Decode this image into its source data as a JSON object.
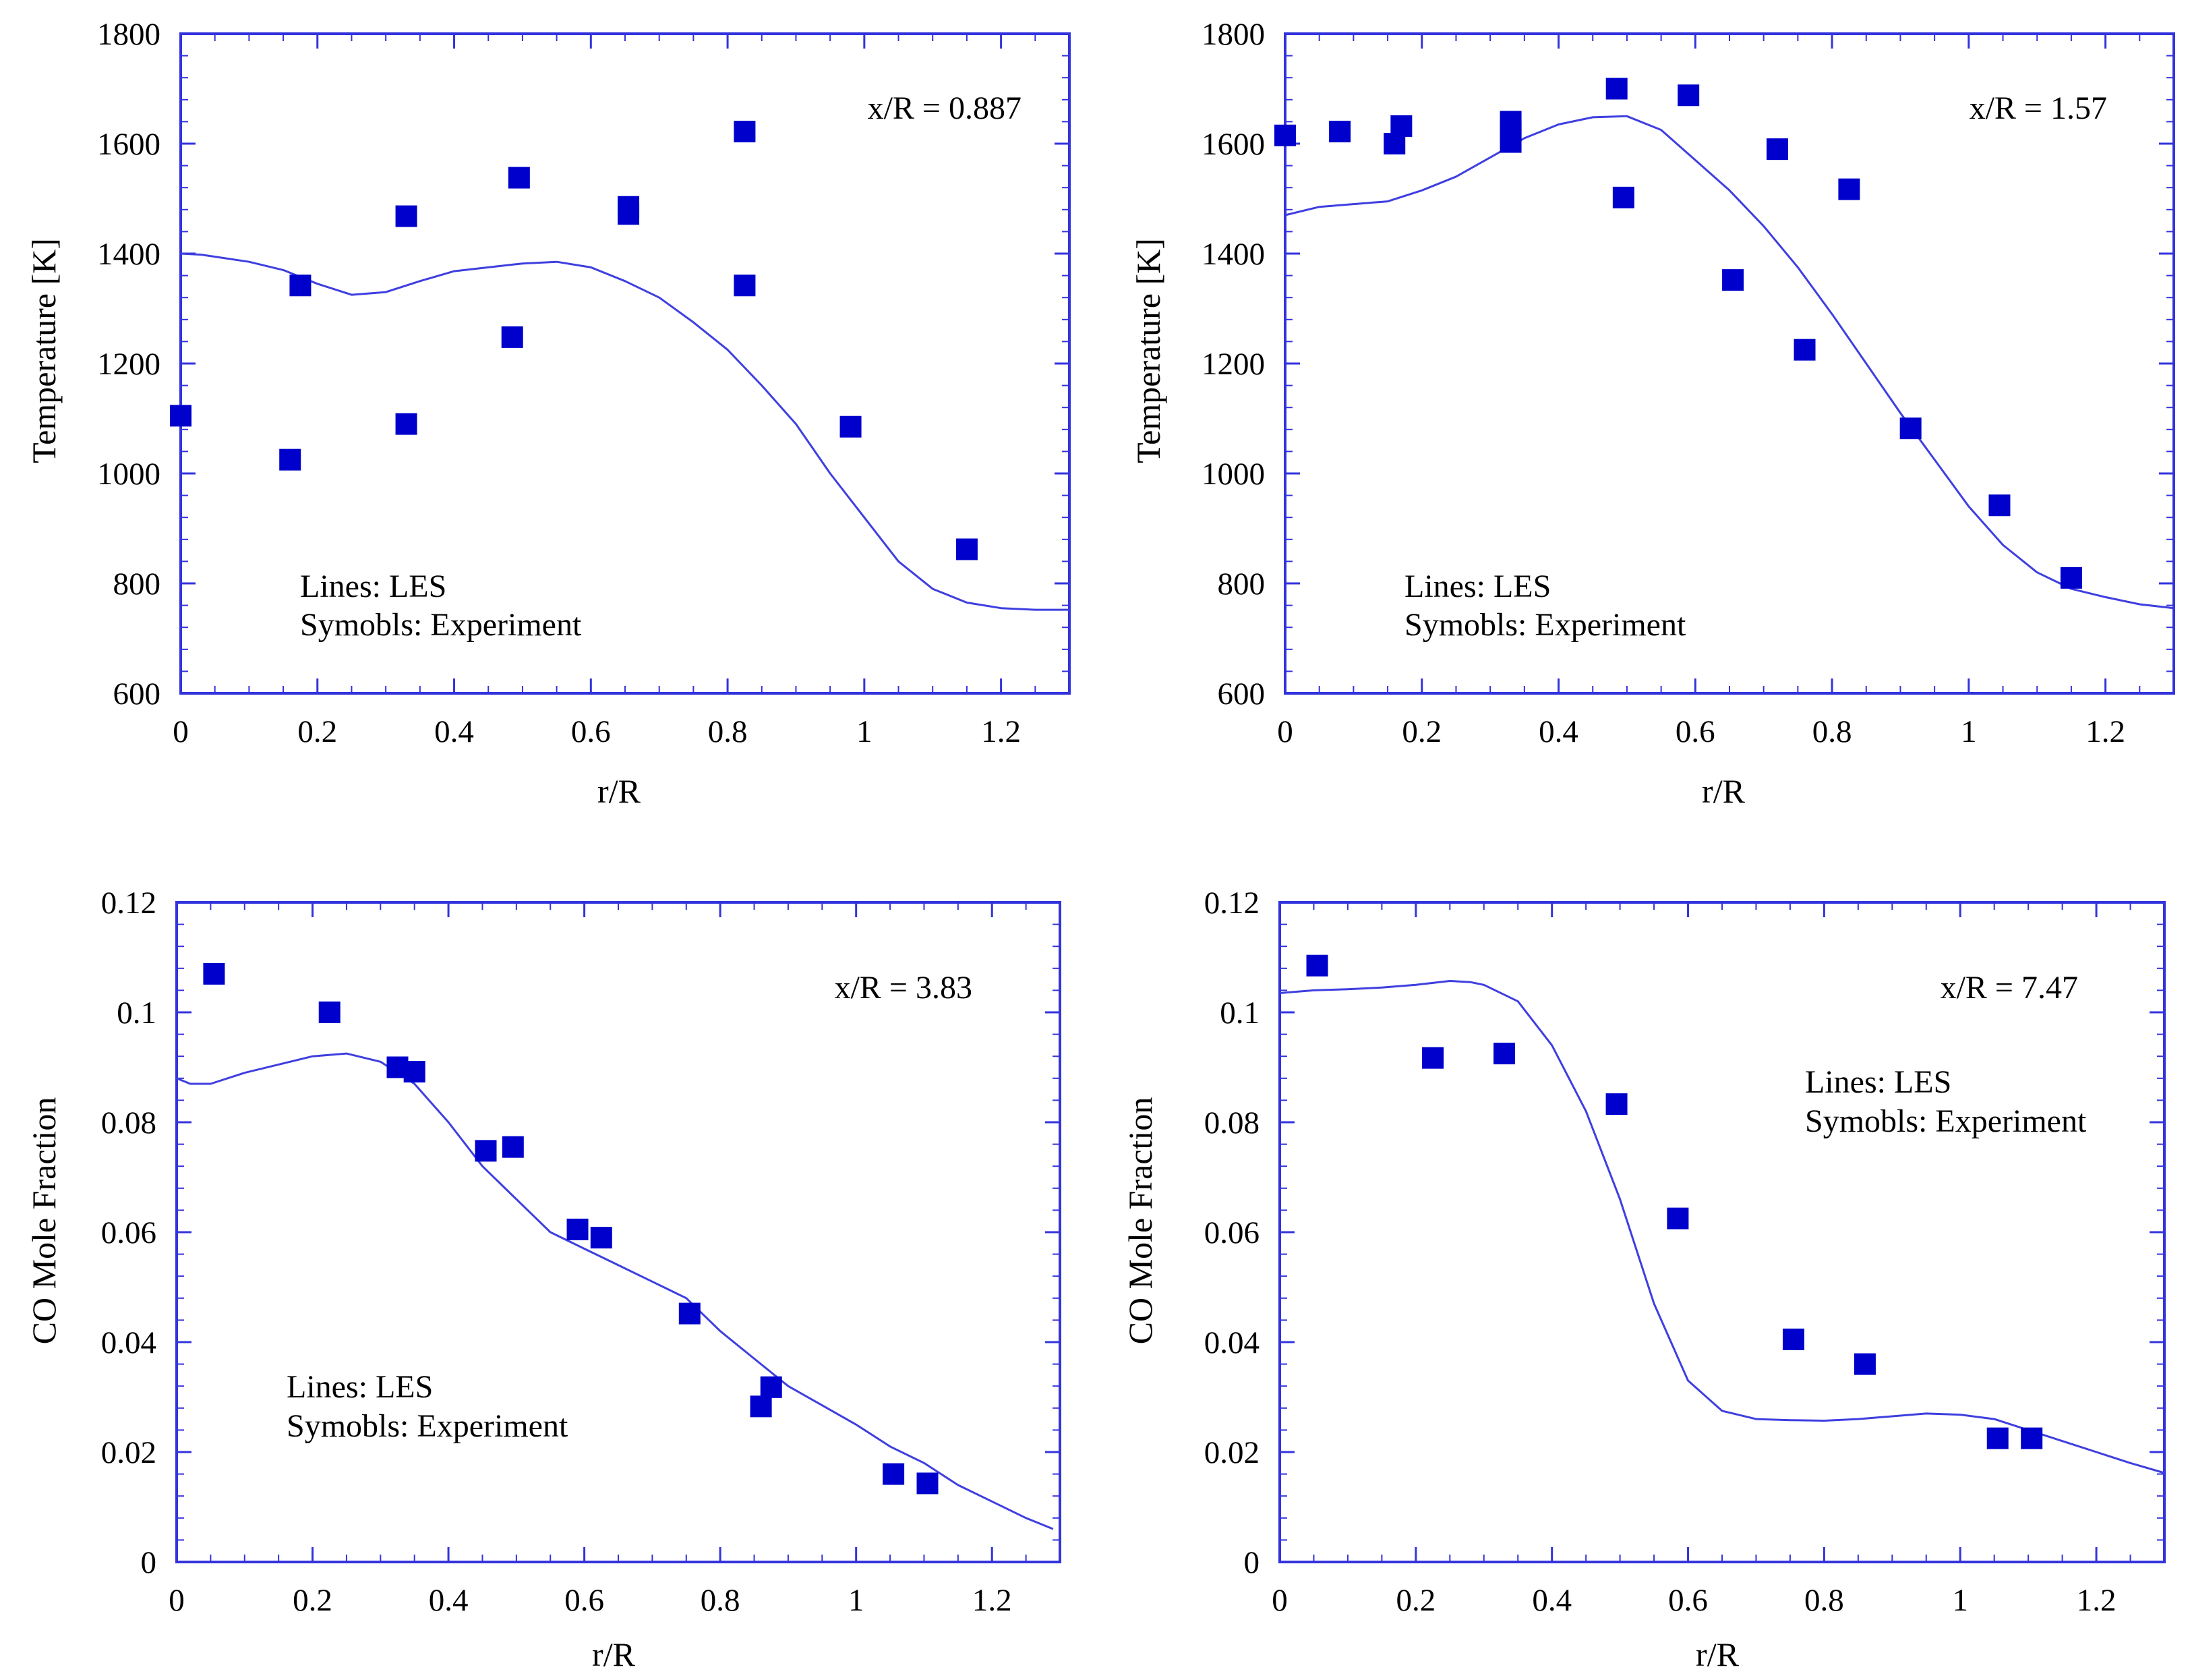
{
  "page": {
    "background": "#ffffff",
    "axis_color": "#3333dd",
    "mark_color": "#0000cc",
    "line_color": "#3f3fe0"
  },
  "chart_data": [
    {
      "type": "scatter",
      "title": "",
      "annotation": "x/R = 0.887",
      "xlabel": "r/R",
      "ylabel": "Temperature [K]",
      "xlim": [
        0,
        1.3
      ],
      "ylim": [
        600,
        1800
      ],
      "xticks": [
        0,
        0.2,
        0.4,
        0.6,
        0.8,
        1,
        1.2
      ],
      "yticks": [
        600,
        800,
        1000,
        1200,
        1400,
        1600,
        1800
      ],
      "xtick_labels": [
        "0",
        "0.2",
        "0.4",
        "0.6",
        "0.8",
        "1",
        "1.2"
      ],
      "ytick_labels": [
        "600",
        "800",
        "1000",
        "1200",
        "1400",
        "1600",
        "1800"
      ],
      "legend": [
        "Lines: LES",
        "Symobls: Experiment"
      ],
      "series": [
        {
          "name": "LES",
          "kind": "line",
          "x": [
            0,
            0.03,
            0.1,
            0.15,
            0.2,
            0.25,
            0.3,
            0.35,
            0.4,
            0.45,
            0.5,
            0.55,
            0.6,
            0.65,
            0.7,
            0.75,
            0.8,
            0.85,
            0.9,
            0.95,
            1.0,
            1.05,
            1.1,
            1.15,
            1.2,
            1.25,
            1.3
          ],
          "y": [
            1400,
            1398,
            1385,
            1370,
            1345,
            1325,
            1330,
            1350,
            1368,
            1375,
            1382,
            1385,
            1375,
            1350,
            1320,
            1275,
            1225,
            1160,
            1090,
            1000,
            920,
            840,
            790,
            765,
            755,
            752,
            752
          ]
        },
        {
          "name": "Experiment",
          "kind": "scatter",
          "x": [
            0,
            0.16,
            0.175,
            0.33,
            0.33,
            0.485,
            0.495,
            0.655,
            0.655,
            0.825,
            0.825,
            0.98,
            1.15
          ],
          "y": [
            1105,
            1025,
            1342,
            1090,
            1468,
            1248,
            1538,
            1472,
            1485,
            1622,
            1342,
            1085,
            862
          ]
        }
      ]
    },
    {
      "type": "scatter",
      "title": "",
      "annotation": "x/R = 1.57",
      "xlabel": "r/R",
      "ylabel": "Temperature [K]",
      "xlim": [
        0,
        1.3
      ],
      "ylim": [
        600,
        1800
      ],
      "xticks": [
        0,
        0.2,
        0.4,
        0.6,
        0.8,
        1,
        1.2
      ],
      "yticks": [
        600,
        800,
        1000,
        1200,
        1400,
        1600,
        1800
      ],
      "xtick_labels": [
        "0",
        "0.2",
        "0.4",
        "0.6",
        "0.8",
        "1",
        "1.2"
      ],
      "ytick_labels": [
        "600",
        "800",
        "1000",
        "1200",
        "1400",
        "1600",
        "1800"
      ],
      "legend": [
        "Lines: LES",
        "Symobls: Experiment"
      ],
      "series": [
        {
          "name": "LES",
          "kind": "line",
          "x": [
            0,
            0.05,
            0.1,
            0.15,
            0.2,
            0.25,
            0.3,
            0.35,
            0.4,
            0.45,
            0.5,
            0.55,
            0.6,
            0.65,
            0.7,
            0.75,
            0.8,
            0.85,
            0.9,
            0.95,
            1.0,
            1.05,
            1.1,
            1.15,
            1.2,
            1.25,
            1.3
          ],
          "y": [
            1470,
            1485,
            1490,
            1495,
            1515,
            1540,
            1575,
            1610,
            1635,
            1648,
            1650,
            1625,
            1570,
            1515,
            1450,
            1375,
            1290,
            1200,
            1110,
            1025,
            940,
            870,
            820,
            790,
            775,
            762,
            755
          ]
        },
        {
          "name": "Experiment",
          "kind": "scatter",
          "x": [
            0,
            0.08,
            0.16,
            0.17,
            0.33,
            0.33,
            0.33,
            0.485,
            0.495,
            0.59,
            0.655,
            0.72,
            0.76,
            0.825,
            0.915,
            1.045,
            1.15
          ],
          "y": [
            1615,
            1622,
            1600,
            1632,
            1640,
            1622,
            1603,
            1700,
            1502,
            1688,
            1352,
            1590,
            1225,
            1517,
            1082,
            942,
            810
          ]
        }
      ]
    },
    {
      "type": "scatter",
      "title": "",
      "annotation": "x/R = 3.83",
      "xlabel": "r/R",
      "ylabel": "CO Mole Fraction",
      "xlim": [
        0,
        1.3
      ],
      "ylim": [
        0,
        0.12
      ],
      "xticks": [
        0,
        0.2,
        0.4,
        0.6,
        0.8,
        1,
        1.2
      ],
      "yticks": [
        0,
        0.02,
        0.04,
        0.06,
        0.08,
        0.1,
        0.12
      ],
      "xtick_labels": [
        "0",
        "0.2",
        "0.4",
        "0.6",
        "0.8",
        "1",
        "1.2"
      ],
      "ytick_labels": [
        "0",
        "0.02",
        "0.04",
        "0.06",
        "0.08",
        "0.1",
        "0.12"
      ],
      "legend": [
        "Lines: LES",
        "Symobls: Experiment"
      ],
      "series": [
        {
          "name": "LES",
          "kind": "line",
          "x": [
            0,
            0.02,
            0.05,
            0.1,
            0.15,
            0.2,
            0.25,
            0.3,
            0.35,
            0.4,
            0.45,
            0.5,
            0.55,
            0.6,
            0.65,
            0.7,
            0.75,
            0.8,
            0.85,
            0.9,
            0.95,
            1.0,
            1.05,
            1.1,
            1.15,
            1.2,
            1.25,
            1.29
          ],
          "y": [
            0.088,
            0.087,
            0.087,
            0.089,
            0.0905,
            0.092,
            0.0925,
            0.091,
            0.087,
            0.08,
            0.072,
            0.066,
            0.06,
            0.057,
            0.054,
            0.051,
            0.048,
            0.042,
            0.037,
            0.032,
            0.0285,
            0.025,
            0.021,
            0.018,
            0.014,
            0.011,
            0.008,
            0.006
          ]
        },
        {
          "name": "Experiment",
          "kind": "scatter",
          "x": [
            0.055,
            0.225,
            0.325,
            0.35,
            0.455,
            0.495,
            0.59,
            0.625,
            0.755,
            0.86,
            0.875,
            1.055,
            1.105
          ],
          "y": [
            0.107,
            0.1,
            0.09,
            0.0892,
            0.0748,
            0.0755,
            0.0605,
            0.059,
            0.0452,
            0.0283,
            0.0318,
            0.016,
            0.0143
          ]
        }
      ]
    },
    {
      "type": "scatter",
      "title": "",
      "annotation": "x/R = 7.47",
      "xlabel": "r/R",
      "ylabel": "CO Mole Fraction",
      "xlim": [
        0,
        1.3
      ],
      "ylim": [
        0,
        0.12
      ],
      "xticks": [
        0,
        0.2,
        0.4,
        0.6,
        0.8,
        1,
        1.2
      ],
      "yticks": [
        0,
        0.02,
        0.04,
        0.06,
        0.08,
        0.1,
        0.12
      ],
      "xtick_labels": [
        "0",
        "0.2",
        "0.4",
        "0.6",
        "0.8",
        "1",
        "1.2"
      ],
      "ytick_labels": [
        "0",
        "0.02",
        "0.04",
        "0.06",
        "0.08",
        "0.1",
        "0.12"
      ],
      "legend": [
        "Lines: LES",
        "Symobls: Experiment"
      ],
      "series": [
        {
          "name": "LES",
          "kind": "line",
          "x": [
            0,
            0.05,
            0.1,
            0.15,
            0.2,
            0.25,
            0.28,
            0.3,
            0.35,
            0.4,
            0.45,
            0.5,
            0.55,
            0.6,
            0.65,
            0.7,
            0.75,
            0.8,
            0.85,
            0.9,
            0.95,
            1.0,
            1.05,
            1.1,
            1.15,
            1.2,
            1.25,
            1.3
          ],
          "y": [
            0.1035,
            0.104,
            0.1042,
            0.1045,
            0.105,
            0.1057,
            0.1055,
            0.105,
            0.102,
            0.094,
            0.082,
            0.066,
            0.047,
            0.033,
            0.0275,
            0.026,
            0.0258,
            0.0257,
            0.026,
            0.0265,
            0.027,
            0.0268,
            0.026,
            0.024,
            0.022,
            0.02,
            0.018,
            0.0162
          ]
        },
        {
          "name": "Experiment",
          "kind": "scatter",
          "x": [
            0.055,
            0.225,
            0.33,
            0.495,
            0.585,
            0.755,
            0.86,
            1.055,
            1.105
          ],
          "y": [
            0.1085,
            0.0917,
            0.0925,
            0.0833,
            0.0625,
            0.0405,
            0.036,
            0.0225,
            0.0225
          ]
        }
      ]
    }
  ]
}
